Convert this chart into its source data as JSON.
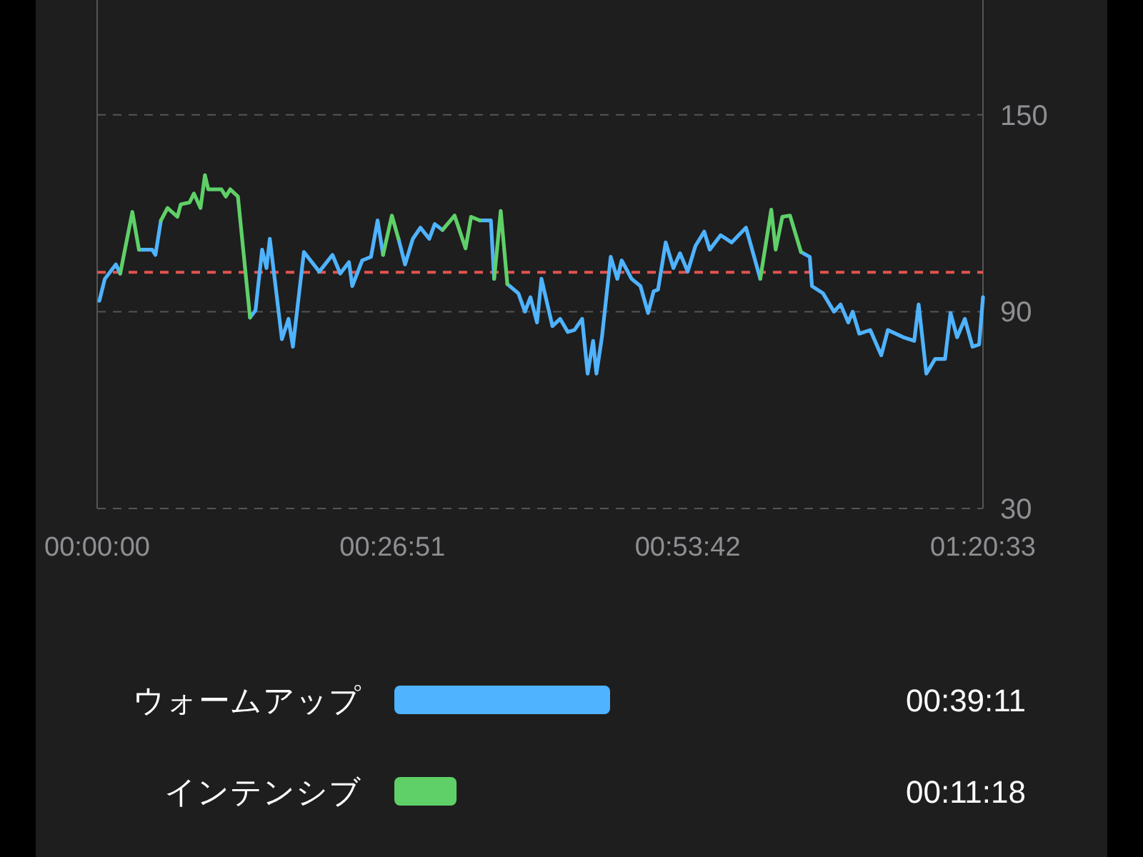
{
  "chart_data": [
    {
      "type": "line",
      "x": [
        0.2,
        0.7,
        1.7,
        2.1,
        3.2,
        3.8,
        5.0,
        5.3,
        5.8,
        6.4,
        7.3,
        7.6,
        8.4,
        8.8,
        9.4,
        9.8,
        10.1,
        11.3,
        11.7,
        12.1,
        12.8,
        13.9,
        14.4,
        15.0,
        15.4,
        15.7,
        16.2,
        16.8,
        17.4,
        17.8,
        18.8,
        20.2,
        21.4,
        22.1,
        22.9,
        23.2,
        24.1,
        24.9,
        25.5,
        26.0,
        26.8,
        27.4,
        28.0,
        28.7,
        29.4,
        30.2,
        30.7,
        31.4,
        32.5,
        33.5,
        34.0,
        34.8,
        35.8,
        36.1,
        36.7,
        37.3,
        38.3,
        38.9,
        39.4,
        40.0,
        40.4,
        41.4,
        42.1,
        42.8,
        43.4,
        44.1,
        44.6,
        45.1,
        45.4,
        45.9,
        46.7,
        47.3,
        47.7,
        48.6,
        49.4,
        50.1,
        50.6,
        51.0,
        51.7,
        52.4,
        53.0,
        53.7,
        54.4,
        55.2,
        55.7,
        56.7,
        57.7,
        59.0,
        60.3,
        61.3,
        61.7,
        62.3,
        63.0,
        64.0,
        64.8,
        65.0,
        66.0,
        67.0,
        67.6,
        68.3,
        68.7,
        69.3,
        70.3,
        71.3,
        71.9,
        73.3,
        74.3,
        74.7,
        75.4,
        76.2,
        77.1,
        77.6,
        78.2,
        78.9,
        79.6,
        80.2,
        80.55
      ],
      "series": [
        {
          "color": "#4fb3ff",
          "values": [
            93.3,
            100,
            104.4,
            101.6,
            null,
            108.9,
            108.9,
            107.3,
            117.8,
            null,
            null,
            null,
            null,
            null,
            null,
            null,
            null,
            null,
            null,
            null,
            null,
            88.2,
            90.4,
            108.9,
            103.3,
            112.2,
            98.4,
            81.6,
            87.8,
            79.3,
            108.2,
            102.2,
            107.3,
            101.6,
            105.1,
            97.8,
            105.6,
            106.7,
            117.8,
            107.3,
            null,
            112.2,
            104.4,
            112.2,
            115.6,
            112.2,
            116.7,
            114.9,
            null,
            null,
            null,
            117.8,
            117.8,
            100,
            null,
            98.4,
            95.6,
            90,
            94.4,
            86.7,
            100,
            85.6,
            87.8,
            83.8,
            84.4,
            87.8,
            71.1,
            81.1,
            71.1,
            82.2,
            106.7,
            100,
            105.6,
            100,
            97.8,
            89.6,
            96.2,
            96.7,
            111.1,
            103.3,
            107.8,
            102.2,
            110,
            114.4,
            108.9,
            113.3,
            111.1,
            115.6,
            100,
            null,
            null,
            null,
            null,
            108.2,
            106.7,
            97.8,
            95.6,
            90,
            92.2,
            86.7,
            90,
            83.3,
            84.4,
            76.7,
            84.4,
            82.2,
            81.1,
            92.2,
            71.1,
            75.6,
            75.6,
            89.6,
            82.2,
            87.8,
            79.3,
            80,
            94.4
          ]
        },
        {
          "color": "#5fd068",
          "values": [
            null,
            null,
            null,
            101.6,
            120.4,
            108.9,
            null,
            null,
            117.8,
            121.6,
            118.9,
            122.7,
            123.3,
            126,
            121.6,
            131.6,
            127.3,
            127.3,
            125.1,
            127.3,
            125.1,
            88.2,
            null,
            null,
            null,
            null,
            null,
            null,
            null,
            null,
            null,
            null,
            null,
            null,
            null,
            null,
            null,
            null,
            null,
            107.3,
            119.3,
            112.2,
            null,
            null,
            null,
            null,
            null,
            114.9,
            119.3,
            109.3,
            118.9,
            117.8,
            null,
            100,
            120.7,
            98.4,
            null,
            null,
            null,
            null,
            null,
            null,
            null,
            null,
            null,
            null,
            null,
            null,
            null,
            null,
            null,
            null,
            null,
            null,
            null,
            null,
            null,
            null,
            null,
            null,
            null,
            null,
            null,
            null,
            null,
            null,
            null,
            null,
            100,
            121.1,
            108.9,
            118.9,
            119.3,
            108.2,
            null,
            null,
            null,
            null,
            null,
            null,
            null,
            null,
            null,
            null,
            null,
            null,
            null,
            null,
            null,
            null,
            null,
            null,
            null,
            null,
            null,
            null,
            null
          ]
        }
      ],
      "xlim": [
        0,
        80.55
      ],
      "xticks": [
        {
          "value": 0,
          "label": "00:00:00"
        },
        {
          "value": 26.85,
          "label": "00:26:51"
        },
        {
          "value": 53.7,
          "label": "00:53:42"
        },
        {
          "value": 80.55,
          "label": "01:20:33"
        }
      ],
      "ylim": [
        30,
        185
      ],
      "yticks": [
        30,
        90,
        150
      ],
      "grid": "y",
      "ref_lines": [
        {
          "axis": "y",
          "value": 102,
          "color": "#e0544f",
          "line_style": "dashed"
        }
      ]
    },
    {
      "type": "bar",
      "orientation": "horizontal",
      "categories": [
        "ウォームアップ",
        "インテンシブ"
      ],
      "values": [
        2351,
        678
      ],
      "colors": [
        "#4fb3ff",
        "#5fd068"
      ],
      "value_labels": [
        "00:39:11",
        "00:11:18"
      ]
    }
  ]
}
